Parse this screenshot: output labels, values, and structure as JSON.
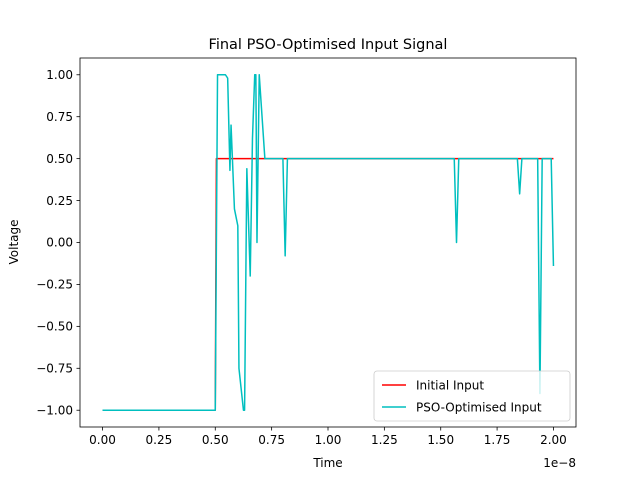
{
  "chart_data": {
    "type": "line",
    "title": "Final PSO-Optimised Input Signal",
    "xlabel": "Time",
    "ylabel": "Voltage",
    "x_offset_text": "1e−8",
    "xlim": [
      -0.1,
      2.1
    ],
    "ylim": [
      -1.1,
      1.1
    ],
    "x_ticks": [
      0.0,
      0.25,
      0.5,
      0.75,
      1.0,
      1.25,
      1.5,
      1.75,
      2.0
    ],
    "x_tick_labels": [
      "0.00",
      "0.25",
      "0.50",
      "0.75",
      "1.00",
      "1.25",
      "1.50",
      "1.75",
      "2.00"
    ],
    "y_ticks": [
      -1.0,
      -0.75,
      -0.5,
      -0.25,
      0.0,
      0.25,
      0.5,
      0.75,
      1.0
    ],
    "y_tick_labels": [
      "−1.00",
      "−0.75",
      "−0.50",
      "−0.25",
      "0.00",
      "0.25",
      "0.50",
      "0.75",
      "1.00"
    ],
    "grid": false,
    "legend_position": "bottom-right",
    "series": [
      {
        "name": "Initial Input",
        "color": "#ff0000",
        "x": [
          0.0,
          0.5,
          0.505,
          2.0
        ],
        "y": [
          -1.0,
          -1.0,
          0.5,
          0.5
        ]
      },
      {
        "name": "PSO-Optimised Input",
        "color": "#00bfbf",
        "x": [
          0.0,
          0.5,
          0.51,
          0.545,
          0.555,
          0.565,
          0.57,
          0.585,
          0.6,
          0.605,
          0.625,
          0.63,
          0.64,
          0.655,
          0.665,
          0.675,
          0.68,
          0.685,
          0.695,
          0.72,
          0.8,
          0.81,
          0.82,
          1.56,
          1.57,
          1.58,
          1.84,
          1.85,
          1.86,
          1.93,
          1.94,
          1.95,
          1.96,
          1.99,
          2.0
        ],
        "y": [
          -1.0,
          -1.0,
          1.0,
          1.0,
          0.98,
          0.43,
          0.7,
          0.2,
          0.1,
          -0.75,
          -1.0,
          -1.0,
          0.44,
          -0.2,
          0.62,
          1.0,
          1.0,
          0.0,
          1.0,
          0.5,
          0.5,
          -0.08,
          0.5,
          0.5,
          0.0,
          0.5,
          0.5,
          0.29,
          0.5,
          0.5,
          -0.9,
          0.5,
          0.5,
          0.5,
          -0.14
        ]
      }
    ]
  }
}
